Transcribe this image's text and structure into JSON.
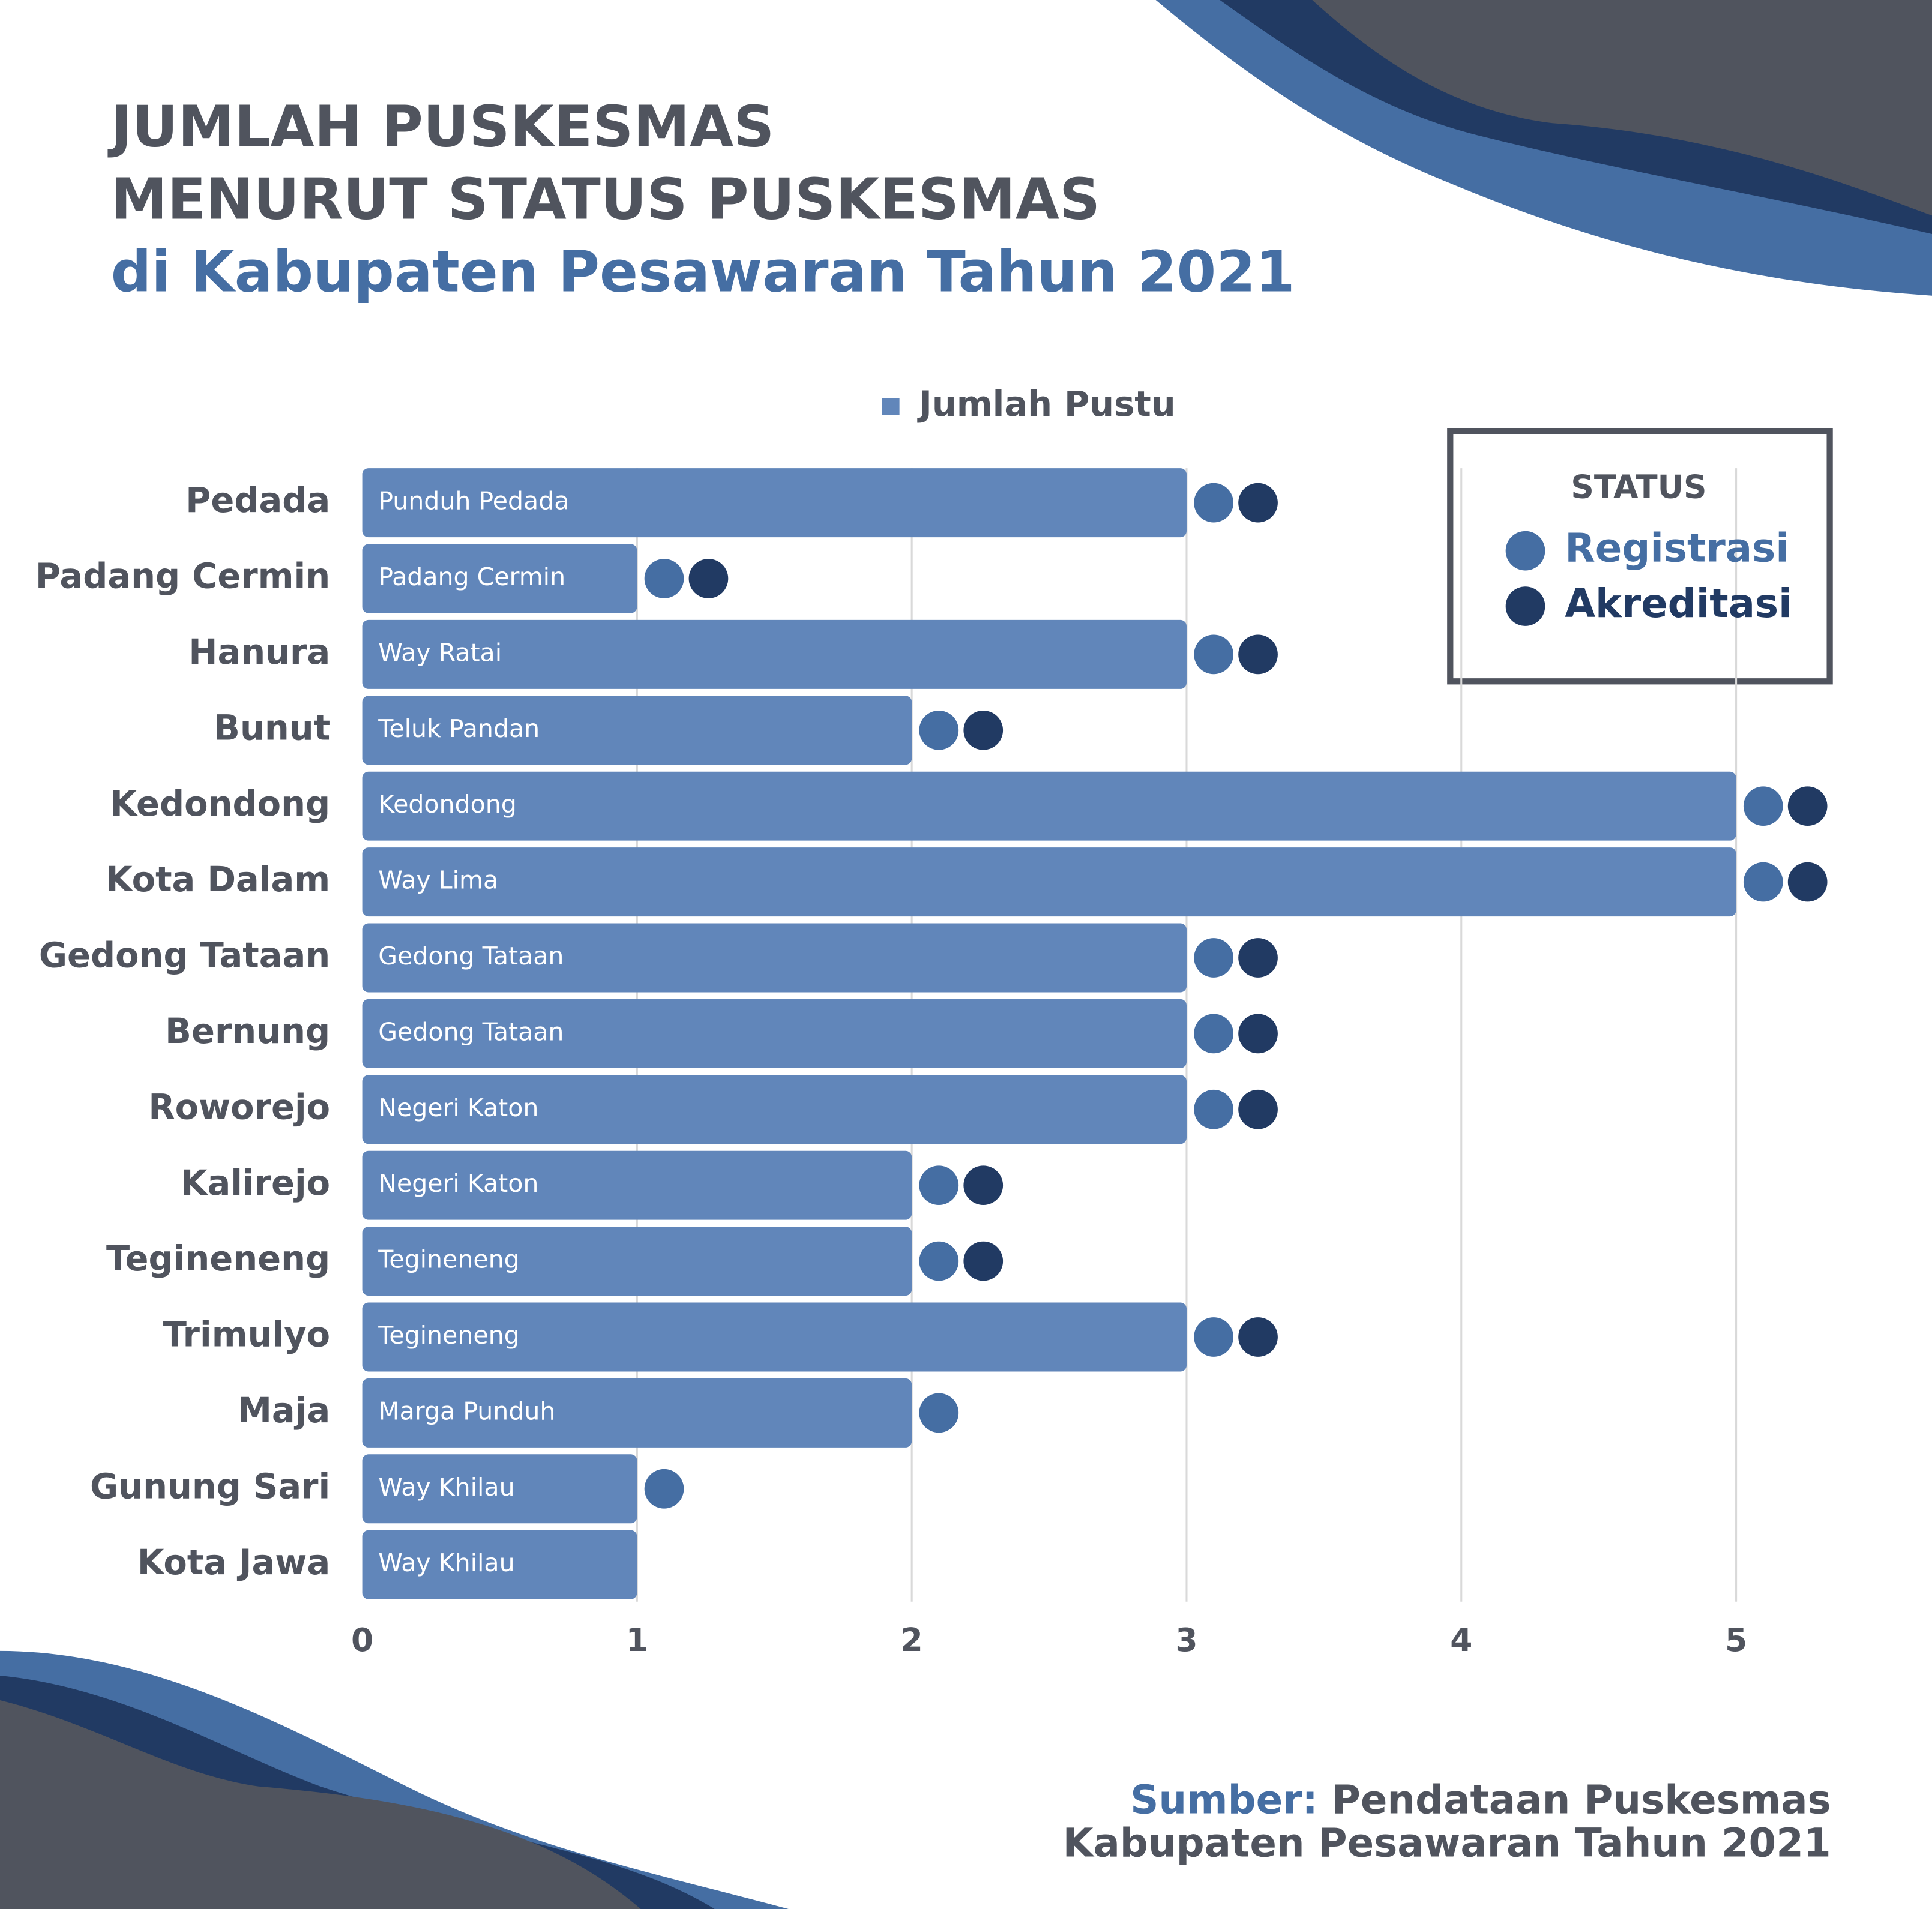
{
  "chart_data": {
    "type": "bar",
    "title": [
      "JUMLAH PUSKESMAS",
      "MENURUT STATUS PUSKESMAS"
    ],
    "subtitle": "di Kabupaten Pesawaran Tahun 2021",
    "categories": [
      "Pedada",
      "Padang Cermin",
      "Hanura",
      "Bunut",
      "Kedondong",
      "Kota Dalam",
      "Gedong Tataan",
      "Bernung",
      "Roworejo",
      "Kalirejo",
      "Tegineneng",
      "Trimulyo",
      "Maja",
      "Gunung Sari",
      "Kota Jawa"
    ],
    "series": [
      {
        "name": "Jumlah Pustu",
        "color": "#6186ba",
        "values": [
          3,
          1,
          3,
          2,
          5,
          5,
          3,
          3,
          3,
          2,
          2,
          3,
          2,
          1,
          1
        ],
        "bar_labels": [
          "Punduh Pedada",
          "Padang Cermin",
          "Way Ratai",
          "Teluk Pandan",
          "Kedondong",
          "Way Lima",
          "Gedong Tataan",
          "Gedong Tataan",
          "Negeri Katon",
          "Negeri Katon",
          "Tegineneng",
          "Tegineneng",
          "Marga Punduh",
          "Way Khilau",
          "Way Khilau"
        ]
      }
    ],
    "xlim": [
      0,
      5.2
    ],
    "xticks": [
      0,
      1,
      2,
      3,
      4,
      5
    ],
    "grid": true,
    "status": {
      "title": "STATUS",
      "items": [
        {
          "name": "Registrasi",
          "color": "#456ea3",
          "values": [
            true,
            true,
            true,
            true,
            true,
            true,
            true,
            true,
            true,
            true,
            true,
            true,
            true,
            true,
            false
          ]
        },
        {
          "name": "Akreditasi",
          "color": "#213a63",
          "values": [
            true,
            true,
            true,
            true,
            true,
            true,
            true,
            true,
            true,
            true,
            true,
            true,
            false,
            false,
            false
          ]
        }
      ]
    },
    "source_label": "Sumber:",
    "source": [
      "Pendataan Puskesmas",
      "Kabupaten Pesawaran Tahun 2021"
    ]
  }
}
